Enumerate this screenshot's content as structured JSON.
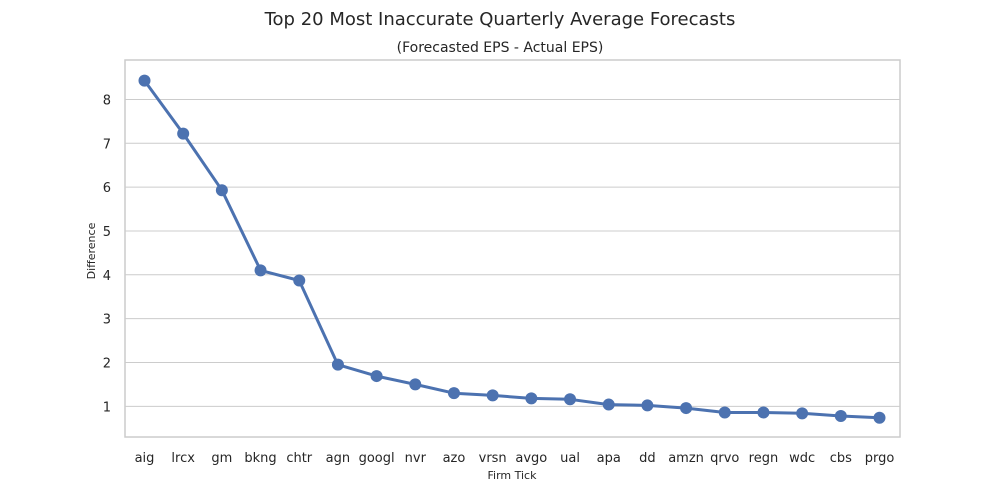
{
  "chart_data": {
    "type": "line",
    "title": "Top 20 Most Inaccurate Quarterly Average Forecasts",
    "subtitle": "(Forecasted EPS - Actual EPS)",
    "xlabel": "Firm Tick",
    "ylabel": "Difference",
    "categories": [
      "aig",
      "lrcx",
      "gm",
      "bkng",
      "chtr",
      "agn",
      "googl",
      "nvr",
      "azo",
      "vrsn",
      "avgo",
      "ual",
      "apa",
      "dd",
      "amzn",
      "qrvo",
      "regn",
      "wdc",
      "cbs",
      "prgo"
    ],
    "values": [
      8.43,
      7.22,
      5.93,
      4.1,
      3.87,
      1.95,
      1.69,
      1.5,
      1.3,
      1.25,
      1.18,
      1.16,
      1.04,
      1.02,
      0.96,
      0.86,
      0.86,
      0.84,
      0.78,
      0.74
    ],
    "yticks": [
      1,
      2,
      3,
      4,
      5,
      6,
      7,
      8
    ],
    "ylim": [
      0.3,
      8.9
    ],
    "grid": true,
    "colors": {
      "line": "#4c72b0",
      "grid": "#cccccc",
      "frame": "#cccccc"
    }
  }
}
